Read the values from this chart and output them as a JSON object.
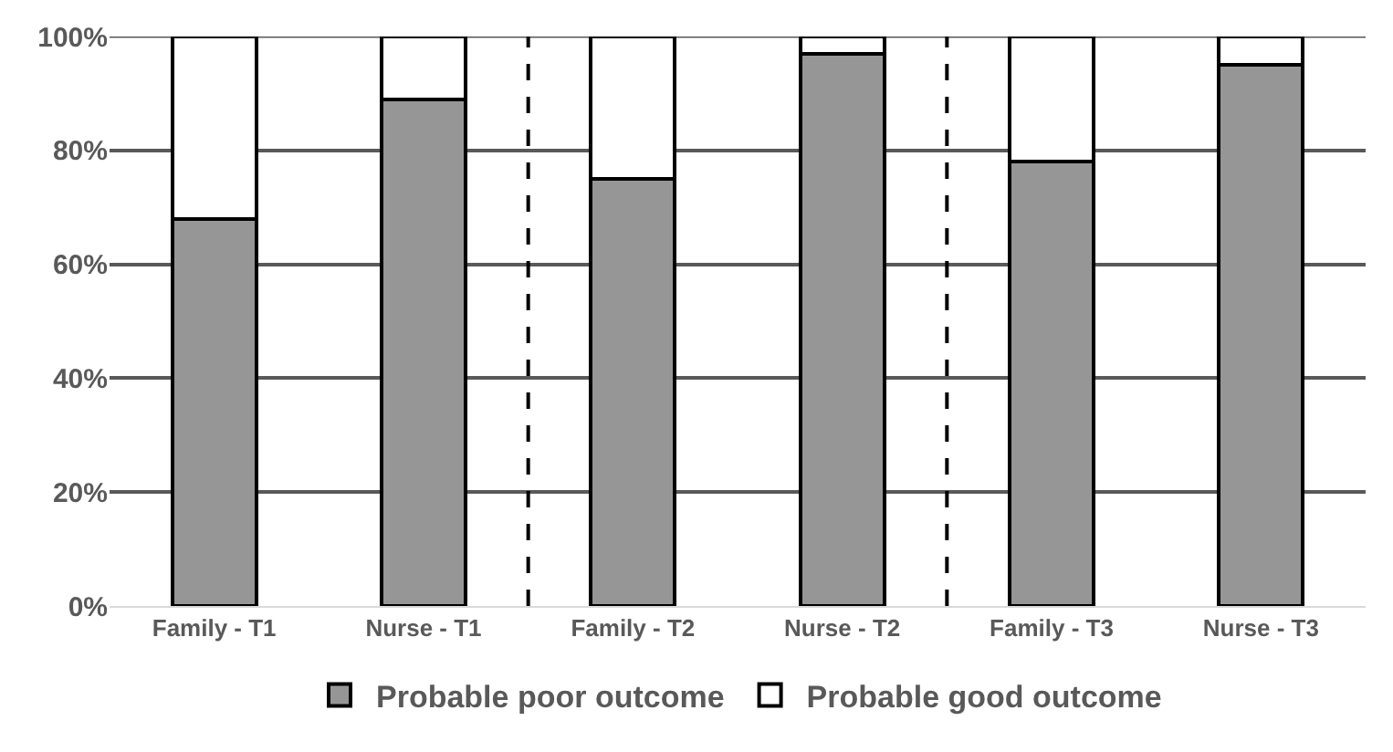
{
  "chart_data": {
    "type": "bar",
    "stacked": true,
    "categories": [
      "Family - T1",
      "Nurse - T1",
      "Family - T2",
      "Nurse - T2",
      "Family - T3",
      "Nurse - T3"
    ],
    "series": [
      {
        "name": "Probable poor outcome",
        "color": "#969696",
        "values": [
          68,
          89,
          75,
          97,
          78,
          95
        ]
      },
      {
        "name": "Probable good outcome",
        "color": "#ffffff",
        "values": [
          32,
          11,
          25,
          3,
          22,
          5
        ]
      }
    ],
    "ylim": [
      0,
      100
    ],
    "yticks": [
      {
        "value": 0,
        "label": "0%"
      },
      {
        "value": 20,
        "label": "20%"
      },
      {
        "value": 40,
        "label": "40%"
      },
      {
        "value": 60,
        "label": "60%"
      },
      {
        "value": 80,
        "label": "80%"
      },
      {
        "value": 100,
        "label": "100%"
      }
    ],
    "grid": "y",
    "legend": "bottom"
  }
}
